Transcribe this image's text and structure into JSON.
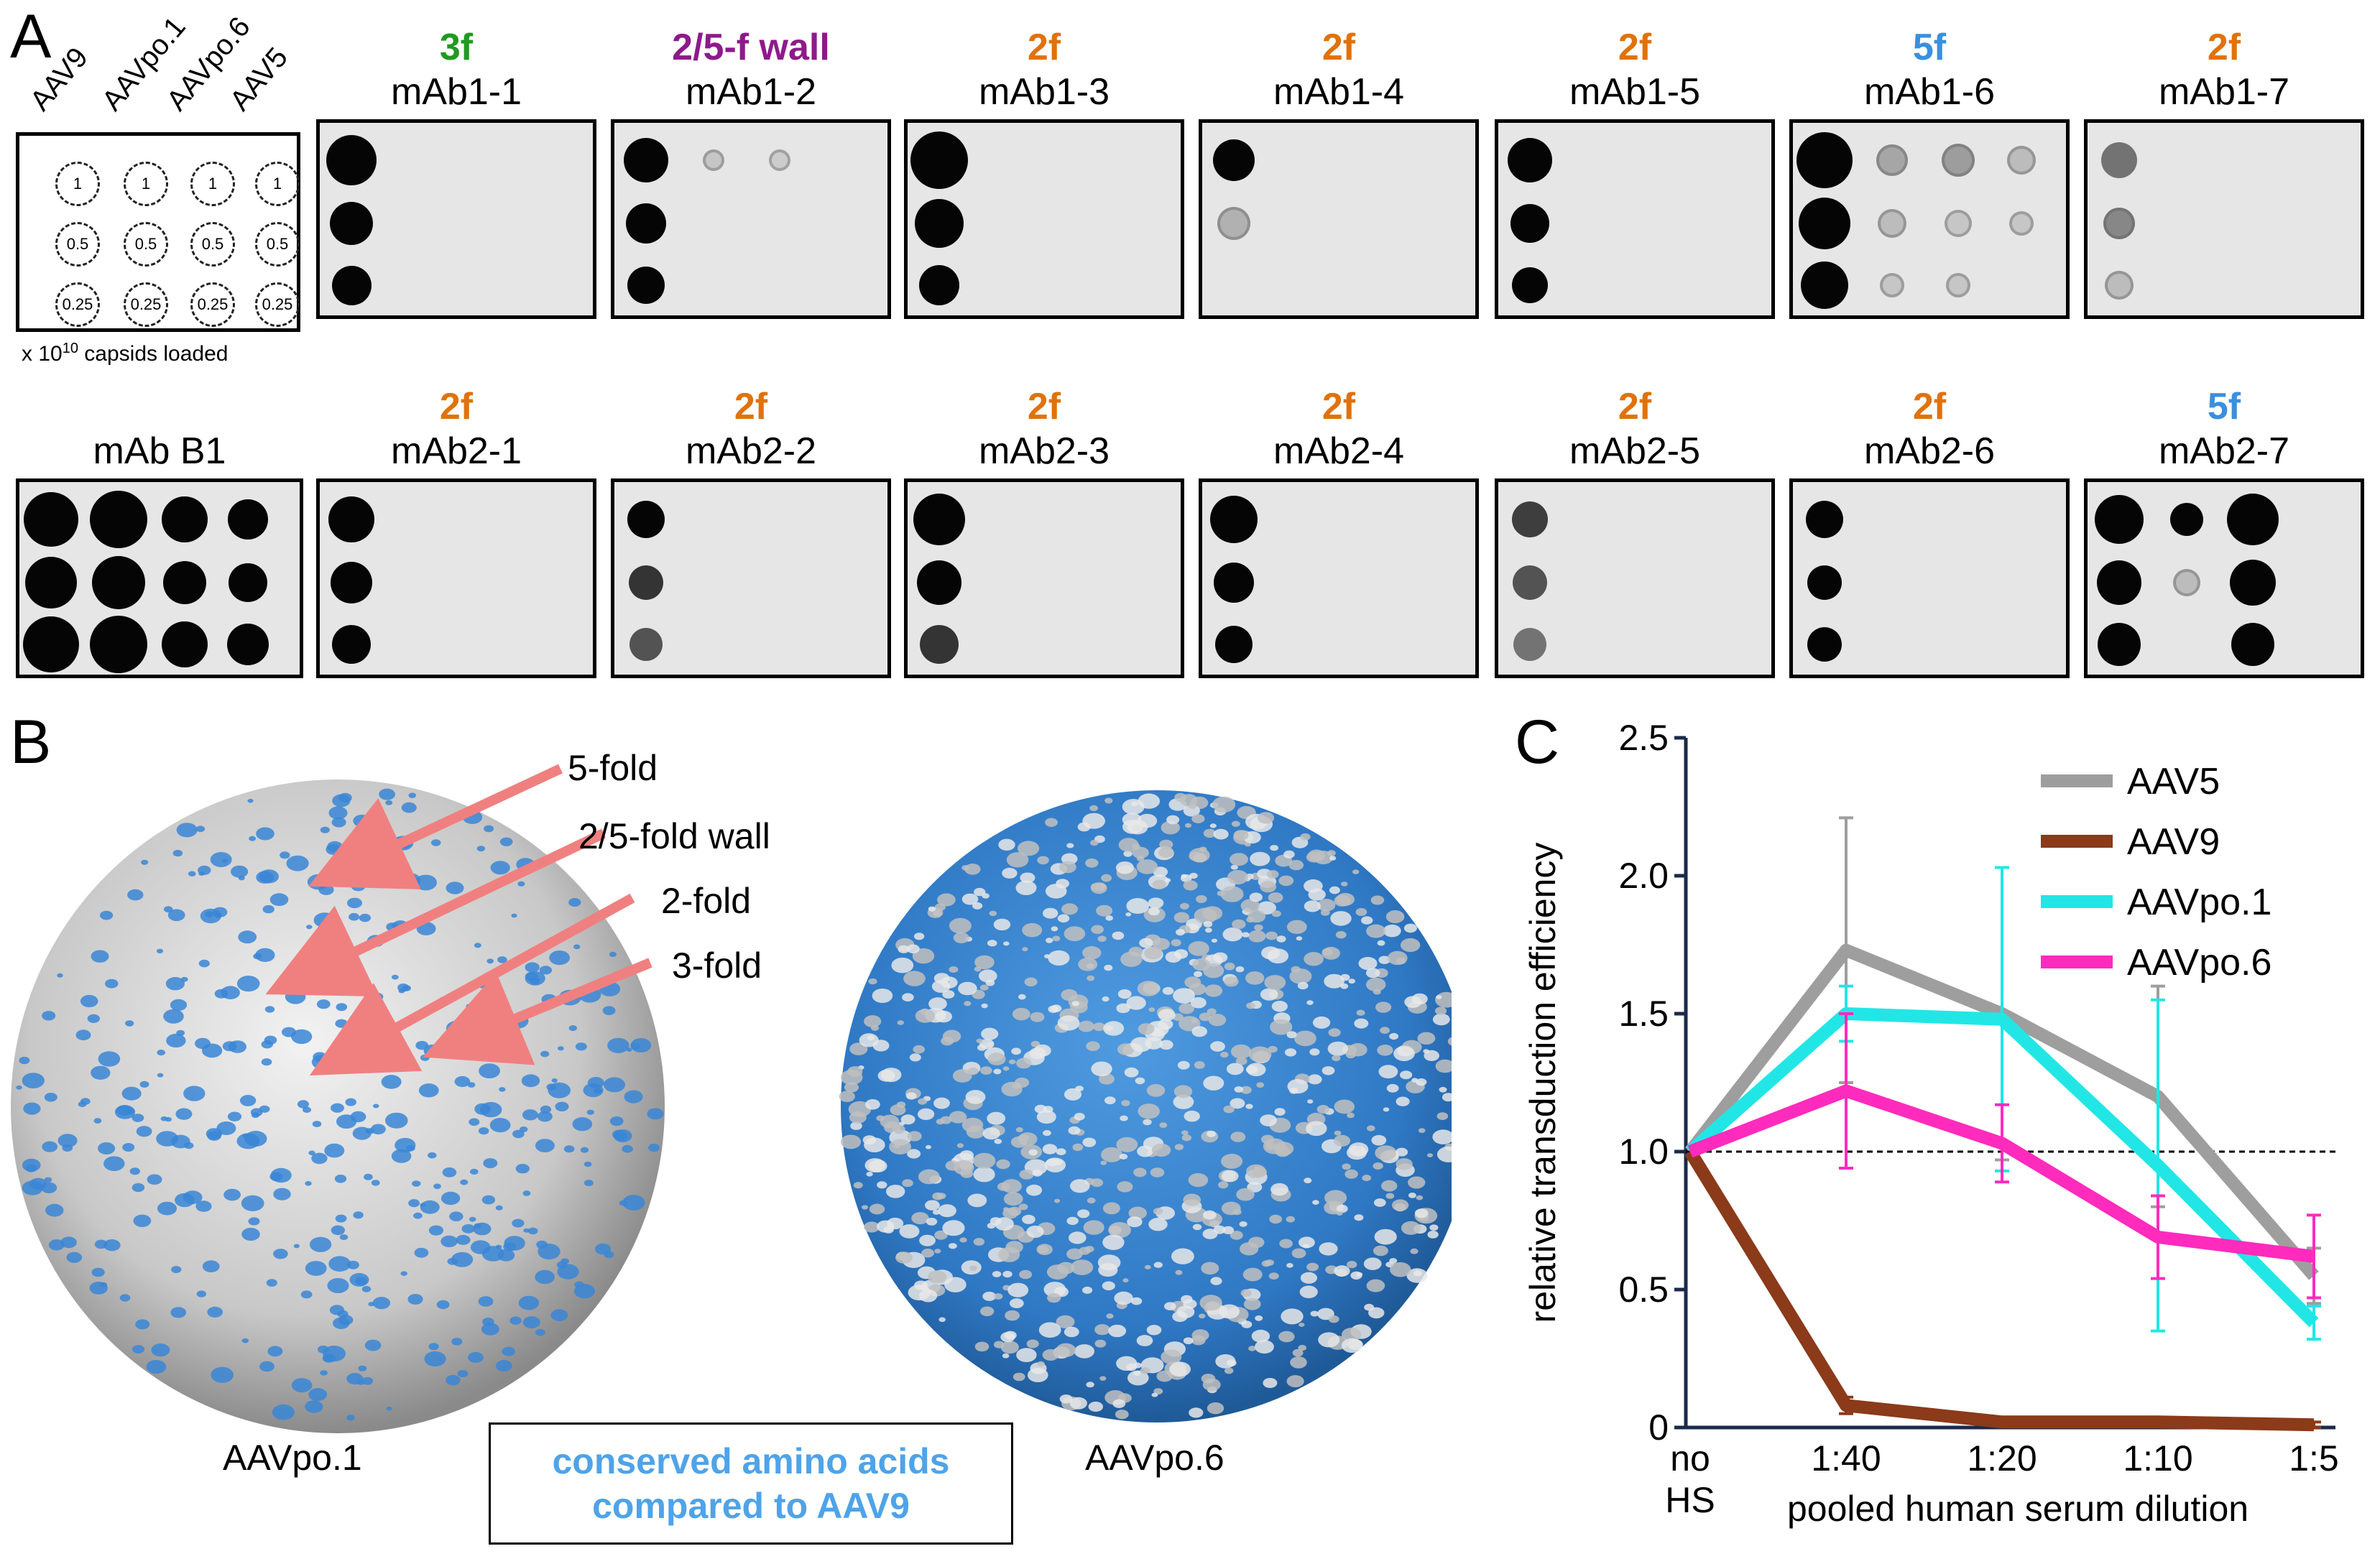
{
  "panels": {
    "a": "A",
    "b": "B",
    "c": "C"
  },
  "dot_legend": {
    "serotypes": [
      "AAV9",
      "AAVpo.1",
      "AAVpo.6",
      "AAV5"
    ],
    "rows": [
      "1",
      "0.5",
      "0.25"
    ],
    "note_prefix": "x 10",
    "note_exp": "10",
    "note_suffix": " capsids loaded"
  },
  "blots_row1": [
    {
      "site": "3f",
      "color": "#1f9a1f",
      "name": "mAb1-1"
    },
    {
      "site": "2/5-f wall",
      "color": "#8e1a8a",
      "name": "mAb1-2"
    },
    {
      "site": "2f",
      "color": "#e0720a",
      "name": "mAb1-3"
    },
    {
      "site": "2f",
      "color": "#e0720a",
      "name": "mAb1-4"
    },
    {
      "site": "2f",
      "color": "#e0720a",
      "name": "mAb1-5"
    },
    {
      "site": "5f",
      "color": "#3a8fde",
      "name": "mAb1-6"
    },
    {
      "site": "2f",
      "color": "#e0720a",
      "name": "mAb1-7"
    }
  ],
  "blots_row2": [
    {
      "site": "",
      "color": "#000000",
      "name": "mAb B1"
    },
    {
      "site": "2f",
      "color": "#e0720a",
      "name": "mAb2-1"
    },
    {
      "site": "2f",
      "color": "#e0720a",
      "name": "mAb2-2"
    },
    {
      "site": "2f",
      "color": "#e0720a",
      "name": "mAb2-3"
    },
    {
      "site": "2f",
      "color": "#e0720a",
      "name": "mAb2-4"
    },
    {
      "site": "2f",
      "color": "#e0720a",
      "name": "mAb2-5"
    },
    {
      "site": "2f",
      "color": "#e0720a",
      "name": "mAb2-6"
    },
    {
      "site": "5f",
      "color": "#3a8fde",
      "name": "mAb2-7"
    }
  ],
  "panel_b": {
    "left_capsid": "AAVpo.1",
    "right_capsid": "AAVpo.6",
    "fold_labels": [
      "5-fold",
      "2/5-fold wall",
      "2-fold",
      "3-fold"
    ],
    "conserved_line1": "conserved amino acids",
    "conserved_line2": "compared to AAV9",
    "arrow_color": "#f08080",
    "conserved_color": "#3a8fde"
  },
  "chart_data": {
    "type": "line",
    "ylabel": "relative transduction efficiency",
    "xlabel": "pooled human serum dilution",
    "categories": [
      "no HS",
      "1:40",
      "1:20",
      "1:10",
      "1:5"
    ],
    "category_lines": [
      [
        "no",
        "HS"
      ],
      [
        "1:40"
      ],
      [
        "1:20"
      ],
      [
        "1:10"
      ],
      [
        "1:5"
      ]
    ],
    "ylim": [
      0,
      2.5
    ],
    "yticks": [
      "0",
      "0.5",
      "1.0",
      "1.5",
      "2.0",
      "2.5"
    ],
    "reference_line": 1.0,
    "legend_position": "top-right",
    "series": [
      {
        "name": "AAV5",
        "color": "#9e9e9e",
        "values": [
          1.0,
          1.73,
          1.5,
          1.2,
          0.55
        ],
        "err": [
          0,
          0.48,
          0.53,
          0.4,
          0.1
        ]
      },
      {
        "name": "AAV9",
        "color": "#8b3a1a",
        "values": [
          1.0,
          0.08,
          0.02,
          0.02,
          0.01
        ],
        "err": [
          0,
          0.03,
          0.01,
          0.01,
          0.01
        ]
      },
      {
        "name": "AAVpo.1",
        "color": "#22e6e6",
        "values": [
          1.0,
          1.5,
          1.48,
          0.95,
          0.38
        ],
        "err": [
          0,
          0.1,
          0.55,
          0.6,
          0.06
        ]
      },
      {
        "name": "AAVpo.6",
        "color": "#ff2bbd",
        "values": [
          1.0,
          1.22,
          1.03,
          0.69,
          0.62
        ],
        "err": [
          0,
          0.28,
          0.14,
          0.15,
          0.15
        ]
      }
    ]
  }
}
